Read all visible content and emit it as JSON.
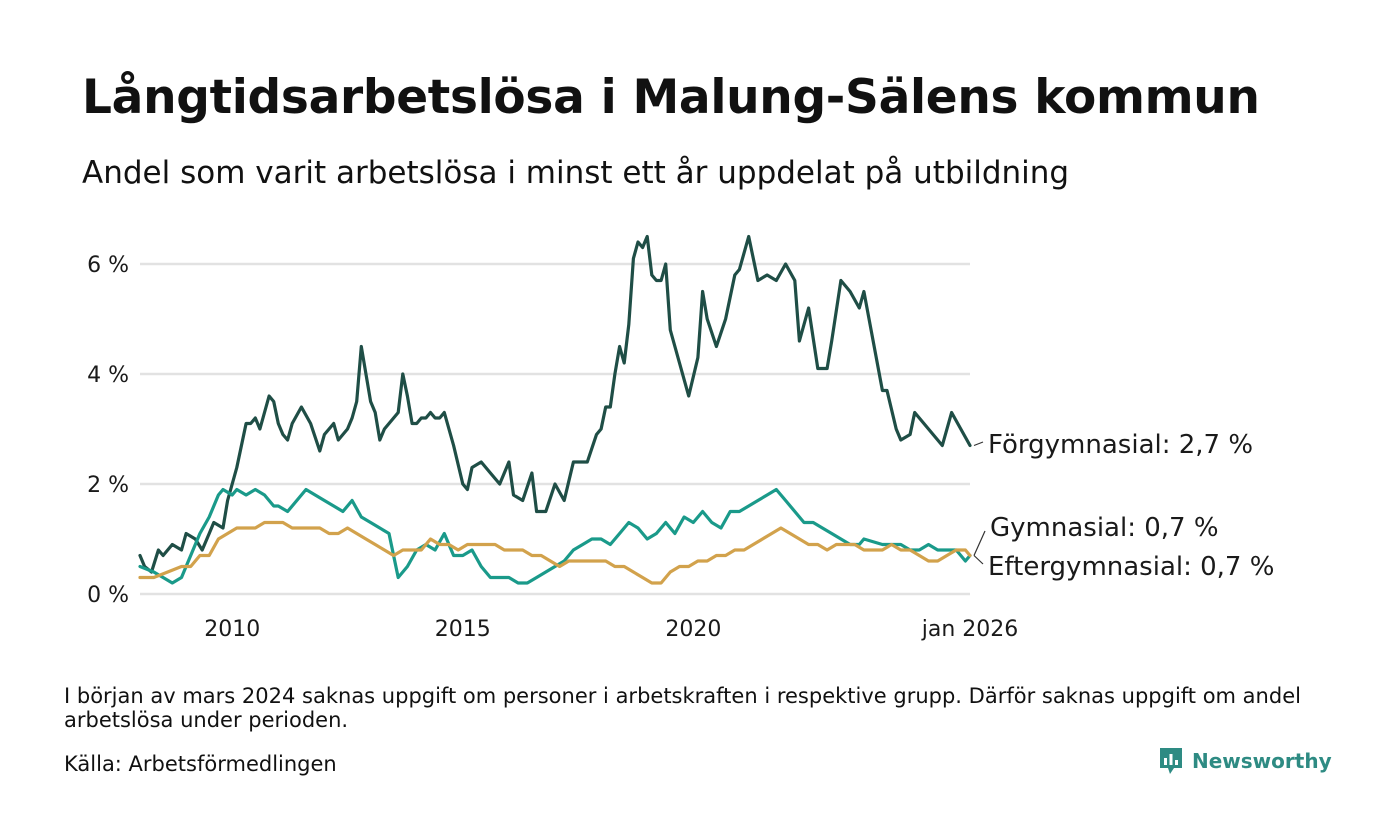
{
  "header": {
    "title": "Långtidsarbetslösa i Malung-Sälens kommun",
    "subtitle": "Andel som varit arbetslösa i minst ett år uppdelat på utbildning"
  },
  "footer": {
    "note": "I början av mars 2024 saknas uppgift om personer i arbetskraften i respektive grupp. Därför saknas uppgift om andel arbetslösa under perioden.",
    "source": "Källa: Arbetsförmedlingen",
    "brand": "Newsworthy"
  },
  "colors": {
    "forgymnasial": "#1f4e46",
    "gymnasial": "#1a9a8a",
    "eftergymnasial": "#d2a24c",
    "grid": "#e2e2e2",
    "brand": "#2e8b83"
  },
  "chart_data": {
    "type": "line",
    "title": "Långtidsarbetslösa i Malung-Sälens kommun",
    "subtitle": "Andel som varit arbetslösa i minst ett år uppdelat på utbildning",
    "xlabel": "",
    "ylabel": "",
    "x_unit": "decimal year",
    "xlim": [
      2008.0,
      2026.0
    ],
    "ylim": [
      0,
      6.5
    ],
    "y_ticks": [
      0,
      2,
      4,
      6
    ],
    "y_tick_labels": [
      "0 %",
      "2 %",
      "4 %",
      "6 %"
    ],
    "x_ticks": [
      2010,
      2015,
      2020,
      2026.0
    ],
    "x_tick_labels": [
      "2010",
      "2015",
      "2020",
      "jan 2026"
    ],
    "grid": true,
    "gap": [
      2023.6,
      2024.1
    ],
    "series": [
      {
        "name": "Förgymnasial",
        "end_label": "Förgymnasial: 2,7 %",
        "x": [
          2008.0,
          2008.1,
          2008.25,
          2008.4,
          2008.5,
          2008.7,
          2008.9,
          2009.0,
          2009.2,
          2009.35,
          2009.5,
          2009.6,
          2009.8,
          2009.9,
          2010.1,
          2010.3,
          2010.4,
          2010.5,
          2010.6,
          2010.7,
          2010.8,
          2010.9,
          2011.0,
          2011.1,
          2011.2,
          2011.3,
          2011.5,
          2011.7,
          2011.9,
          2012.0,
          2012.2,
          2012.3,
          2012.5,
          2012.6,
          2012.7,
          2012.8,
          2013.0,
          2013.1,
          2013.2,
          2013.3,
          2013.5,
          2013.6,
          2013.7,
          2013.8,
          2013.9,
          2014.0,
          2014.1,
          2014.2,
          2014.3,
          2014.4,
          2014.5,
          2014.6,
          2014.8,
          2015.0,
          2015.1,
          2015.2,
          2015.4,
          2015.6,
          2015.8,
          2016.0,
          2016.1,
          2016.3,
          2016.5,
          2016.6,
          2016.8,
          2017.0,
          2017.2,
          2017.4,
          2017.5,
          2017.7,
          2017.9,
          2018.0,
          2018.1,
          2018.2,
          2018.3,
          2018.4,
          2018.5,
          2018.6,
          2018.7,
          2018.8,
          2018.9,
          2019.0,
          2019.1,
          2019.2,
          2019.3,
          2019.4,
          2019.5,
          2019.7,
          2019.9,
          2020.1,
          2020.2,
          2020.3,
          2020.5,
          2020.7,
          2020.9,
          2021.0,
          2021.2,
          2021.4,
          2021.6,
          2021.8,
          2022.0,
          2022.2,
          2022.3,
          2022.5,
          2022.7,
          2022.9,
          2023.0,
          2023.2,
          2023.4,
          2023.6,
          2023.7,
          2024.1,
          2024.2,
          2024.4,
          2024.5,
          2024.7,
          2024.8,
          2024.9,
          2025.2,
          2025.4,
          2025.6,
          2025.8,
          2026.0
        ],
        "values": [
          0.7,
          0.5,
          0.4,
          0.8,
          0.7,
          0.9,
          0.8,
          1.1,
          1.0,
          0.8,
          1.1,
          1.3,
          1.2,
          1.7,
          2.3,
          3.1,
          3.1,
          3.2,
          3.0,
          3.3,
          3.6,
          3.5,
          3.1,
          2.9,
          2.8,
          3.1,
          3.4,
          3.1,
          2.6,
          2.9,
          3.1,
          2.8,
          3.0,
          3.2,
          3.5,
          4.5,
          3.5,
          3.3,
          2.8,
          3.0,
          3.2,
          3.3,
          4.0,
          3.6,
          3.1,
          3.1,
          3.2,
          3.2,
          3.3,
          3.2,
          3.2,
          3.3,
          2.7,
          2.0,
          1.9,
          2.3,
          2.4,
          2.2,
          2.0,
          2.4,
          1.8,
          1.7,
          2.2,
          1.5,
          1.5,
          2.0,
          1.7,
          2.4,
          2.4,
          2.4,
          2.9,
          3.0,
          3.4,
          3.4,
          4.0,
          4.5,
          4.2,
          4.9,
          6.1,
          6.4,
          6.3,
          6.5,
          5.8,
          5.7,
          5.7,
          6.0,
          4.8,
          4.2,
          3.6,
          4.3,
          5.5,
          5.0,
          4.5,
          5.0,
          5.8,
          5.9,
          6.5,
          5.7,
          5.8,
          5.7,
          6.0,
          5.7,
          4.6,
          5.2,
          4.1,
          4.1,
          4.6,
          5.7,
          5.5,
          5.2,
          5.5,
          3.7,
          3.7,
          3.0,
          2.8,
          2.9,
          3.3,
          3.2,
          2.9,
          2.7,
          3.3,
          3.0,
          2.7
        ]
      },
      {
        "name": "Gymnasial",
        "end_label": "Gymnasial: 0,7 %",
        "x": [
          2008.0,
          2008.3,
          2008.5,
          2008.7,
          2008.9,
          2009.1,
          2009.3,
          2009.5,
          2009.7,
          2009.8,
          2010.0,
          2010.1,
          2010.3,
          2010.5,
          2010.7,
          2010.9,
          2011.0,
          2011.2,
          2011.4,
          2011.6,
          2011.8,
          2012.0,
          2012.2,
          2012.4,
          2012.6,
          2012.8,
          2013.0,
          2013.2,
          2013.4,
          2013.6,
          2013.8,
          2014.0,
          2014.2,
          2014.4,
          2014.6,
          2014.8,
          2015.0,
          2015.2,
          2015.4,
          2015.6,
          2015.8,
          2016.0,
          2016.2,
          2016.4,
          2016.6,
          2016.8,
          2017.0,
          2017.2,
          2017.4,
          2017.6,
          2017.8,
          2018.0,
          2018.2,
          2018.4,
          2018.6,
          2018.8,
          2019.0,
          2019.2,
          2019.4,
          2019.6,
          2019.8,
          2020.0,
          2020.2,
          2020.4,
          2020.6,
          2020.8,
          2021.0,
          2021.2,
          2021.4,
          2021.6,
          2021.8,
          2022.0,
          2022.2,
          2022.4,
          2022.6,
          2022.8,
          2023.0,
          2023.2,
          2023.4,
          2023.6,
          2023.7,
          2024.1,
          2024.3,
          2024.5,
          2024.7,
          2024.9,
          2025.1,
          2025.3,
          2025.5,
          2025.7,
          2025.9,
          2026.0
        ],
        "values": [
          0.5,
          0.4,
          0.3,
          0.2,
          0.3,
          0.7,
          1.1,
          1.4,
          1.8,
          1.9,
          1.8,
          1.9,
          1.8,
          1.9,
          1.8,
          1.6,
          1.6,
          1.5,
          1.7,
          1.9,
          1.8,
          1.7,
          1.6,
          1.5,
          1.7,
          1.4,
          1.3,
          1.2,
          1.1,
          0.3,
          0.5,
          0.8,
          0.9,
          0.8,
          1.1,
          0.7,
          0.7,
          0.8,
          0.5,
          0.3,
          0.3,
          0.3,
          0.2,
          0.2,
          0.3,
          0.4,
          0.5,
          0.6,
          0.8,
          0.9,
          1.0,
          1.0,
          0.9,
          1.1,
          1.3,
          1.2,
          1.0,
          1.1,
          1.3,
          1.1,
          1.4,
          1.3,
          1.5,
          1.3,
          1.2,
          1.5,
          1.5,
          1.6,
          1.7,
          1.8,
          1.9,
          1.7,
          1.5,
          1.3,
          1.3,
          1.2,
          1.1,
          1.0,
          0.9,
          0.9,
          1.0,
          0.9,
          0.9,
          0.9,
          0.8,
          0.8,
          0.9,
          0.8,
          0.8,
          0.8,
          0.6,
          0.7
        ]
      },
      {
        "name": "Eftergymnasial",
        "end_label": "Eftergymnasial: 0,7 %",
        "x": [
          2008.0,
          2008.3,
          2008.6,
          2008.9,
          2009.1,
          2009.3,
          2009.5,
          2009.7,
          2009.9,
          2010.1,
          2010.3,
          2010.5,
          2010.7,
          2010.9,
          2011.1,
          2011.3,
          2011.5,
          2011.7,
          2011.9,
          2012.1,
          2012.3,
          2012.5,
          2012.7,
          2012.9,
          2013.1,
          2013.3,
          2013.5,
          2013.7,
          2013.9,
          2014.1,
          2014.3,
          2014.5,
          2014.7,
          2014.9,
          2015.1,
          2015.3,
          2015.5,
          2015.7,
          2015.9,
          2016.1,
          2016.3,
          2016.5,
          2016.7,
          2016.9,
          2017.1,
          2017.3,
          2017.5,
          2017.7,
          2017.9,
          2018.1,
          2018.3,
          2018.5,
          2018.7,
          2018.9,
          2019.1,
          2019.3,
          2019.5,
          2019.7,
          2019.9,
          2020.1,
          2020.3,
          2020.5,
          2020.7,
          2020.9,
          2021.1,
          2021.3,
          2021.5,
          2021.7,
          2021.9,
          2022.1,
          2022.3,
          2022.5,
          2022.7,
          2022.9,
          2023.1,
          2023.3,
          2023.5,
          2023.7,
          2024.1,
          2024.3,
          2024.5,
          2024.7,
          2024.9,
          2025.1,
          2025.3,
          2025.5,
          2025.7,
          2025.9,
          2026.0
        ],
        "values": [
          0.3,
          0.3,
          0.4,
          0.5,
          0.5,
          0.7,
          0.7,
          1.0,
          1.1,
          1.2,
          1.2,
          1.2,
          1.3,
          1.3,
          1.3,
          1.2,
          1.2,
          1.2,
          1.2,
          1.1,
          1.1,
          1.2,
          1.1,
          1.0,
          0.9,
          0.8,
          0.7,
          0.8,
          0.8,
          0.8,
          1.0,
          0.9,
          0.9,
          0.8,
          0.9,
          0.9,
          0.9,
          0.9,
          0.8,
          0.8,
          0.8,
          0.7,
          0.7,
          0.6,
          0.5,
          0.6,
          0.6,
          0.6,
          0.6,
          0.6,
          0.5,
          0.5,
          0.4,
          0.3,
          0.2,
          0.2,
          0.4,
          0.5,
          0.5,
          0.6,
          0.6,
          0.7,
          0.7,
          0.8,
          0.8,
          0.9,
          1.0,
          1.1,
          1.2,
          1.1,
          1.0,
          0.9,
          0.9,
          0.8,
          0.9,
          0.9,
          0.9,
          0.8,
          0.8,
          0.9,
          0.8,
          0.8,
          0.7,
          0.6,
          0.6,
          0.7,
          0.8,
          0.8,
          0.7
        ]
      }
    ]
  }
}
